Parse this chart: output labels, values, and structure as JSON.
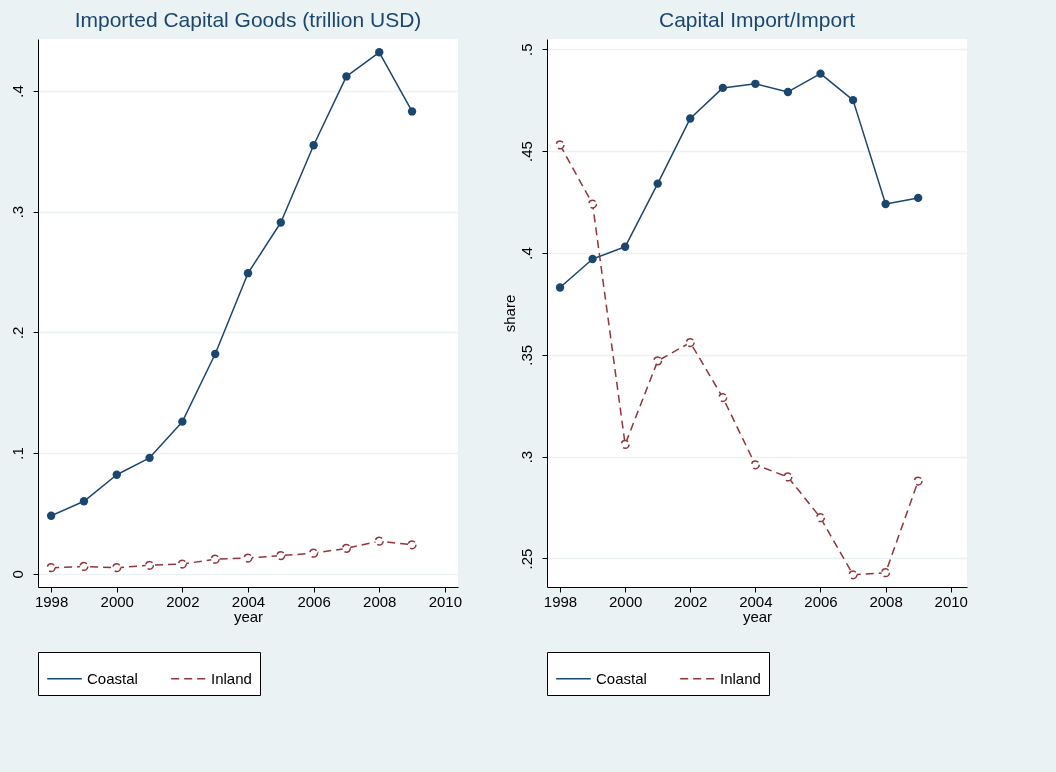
{
  "chart_data": [
    {
      "type": "line",
      "title": "Imported Capital Goods (trillion USD)",
      "xlabel": "year",
      "x": [
        1998,
        1999,
        2000,
        2001,
        2002,
        2003,
        2004,
        2005,
        2006,
        2007,
        2008,
        2009
      ],
      "xlim": [
        1997.6,
        2010.4
      ],
      "xticks": [
        1998,
        2000,
        2002,
        2004,
        2006,
        2008,
        2010
      ],
      "ylim": [
        -0.011,
        0.443
      ],
      "yticks": [
        0,
        {
          "value": 0.1,
          "label": ".1"
        },
        {
          "value": 0.2,
          "label": ".2"
        },
        {
          "value": 0.3,
          "label": ".3"
        },
        {
          "value": 0.4,
          "label": ".4"
        }
      ],
      "grid": "y",
      "legend": "bottom",
      "marker": "circle",
      "series": [
        {
          "name": "Coastal",
          "color": "#1a476f",
          "line_style": "solid",
          "values": [
            0.048,
            0.06,
            0.082,
            0.096,
            0.126,
            0.182,
            0.249,
            0.291,
            0.355,
            0.412,
            0.432,
            0.383
          ]
        },
        {
          "name": "Inland",
          "color": "#90353b",
          "line_style": "dashed",
          "values": [
            0.005,
            0.006,
            0.005,
            0.007,
            0.008,
            0.012,
            0.013,
            0.015,
            0.017,
            0.021,
            0.027,
            0.024
          ]
        }
      ]
    },
    {
      "type": "line",
      "title": "Capital Import/Import",
      "xlabel": "year",
      "ylabel": "share",
      "x": [
        1998,
        1999,
        2000,
        2001,
        2002,
        2003,
        2004,
        2005,
        2006,
        2007,
        2008,
        2009
      ],
      "xlim": [
        1997.6,
        2010.5
      ],
      "xticks": [
        1998,
        2000,
        2002,
        2004,
        2006,
        2008,
        2010
      ],
      "ylim": [
        0.236,
        0.505
      ],
      "yticks": [
        {
          "value": 0.25,
          "label": ".25"
        },
        {
          "value": 0.3,
          "label": ".3"
        },
        {
          "value": 0.35,
          "label": ".35"
        },
        {
          "value": 0.4,
          "label": ".4"
        },
        {
          "value": 0.45,
          "label": ".45"
        },
        {
          "value": 0.5,
          "label": ".5"
        }
      ],
      "grid": "y",
      "legend": "bottom",
      "marker": "circle",
      "series": [
        {
          "name": "Coastal",
          "color": "#1a476f",
          "line_style": "solid",
          "values": [
            0.383,
            0.397,
            0.403,
            0.434,
            0.466,
            0.481,
            0.483,
            0.479,
            0.488,
            0.475,
            0.424,
            0.427
          ]
        },
        {
          "name": "Inland",
          "color": "#90353b",
          "line_style": "dashed",
          "values": [
            0.453,
            0.424,
            0.306,
            0.347,
            0.356,
            0.329,
            0.296,
            0.29,
            0.27,
            0.242,
            0.243,
            0.288
          ]
        }
      ]
    }
  ]
}
